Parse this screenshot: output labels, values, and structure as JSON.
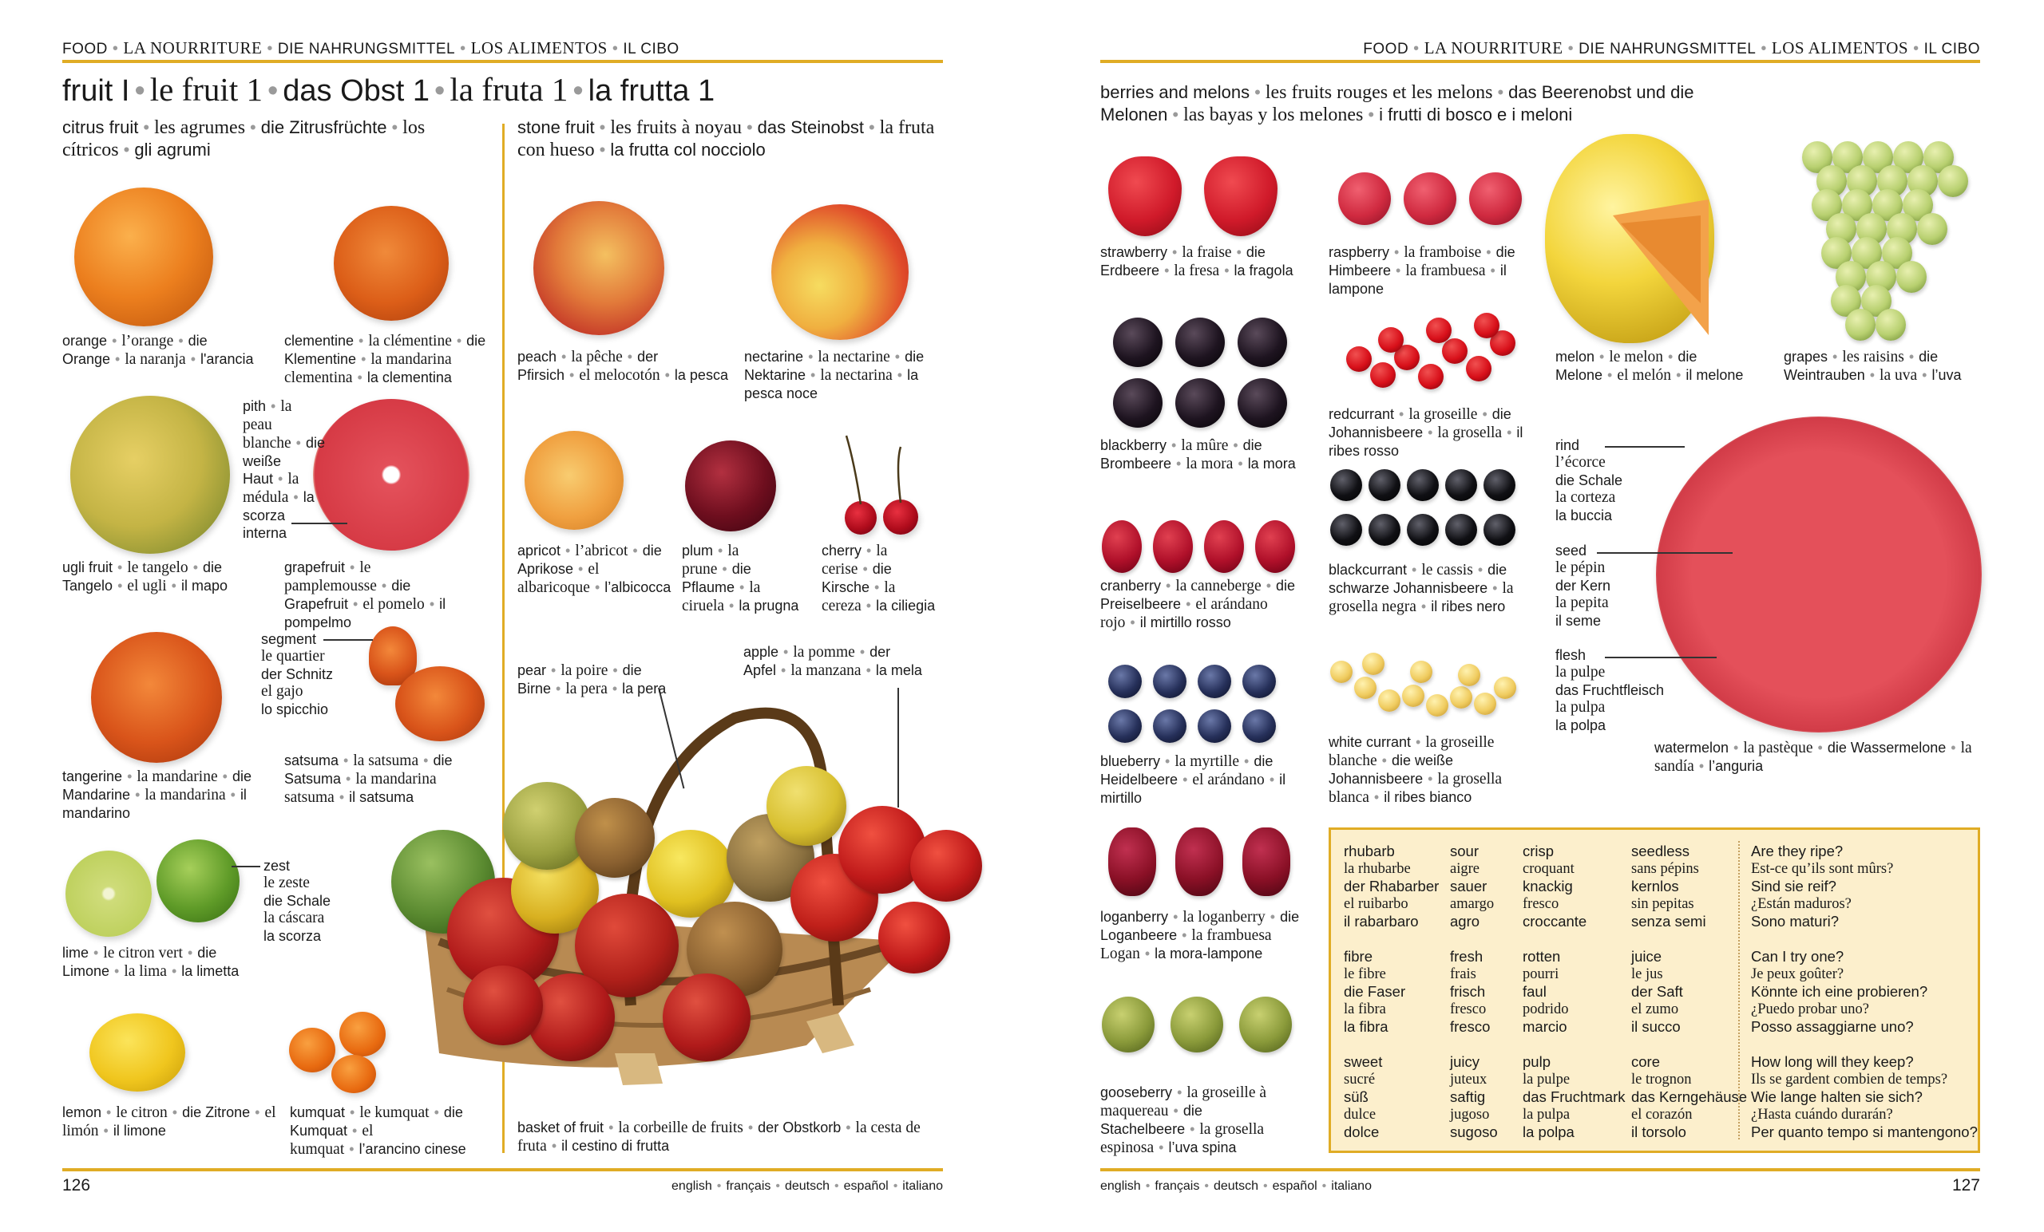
{
  "header": {
    "running_head": [
      "FOOD",
      "LA NOURRITURE",
      "DIE NAHRUNGSMITTEL",
      "LOS ALIMENTOS",
      "IL CIBO"
    ]
  },
  "title": [
    "fruit I",
    "le fruit 1",
    "das Obst 1",
    "la fruta 1",
    "la frutta 1"
  ],
  "left_page": {
    "citrus_heading": [
      "citrus fruit",
      "les agrumes",
      "die Zitrusfrüchte",
      "los cítricos",
      "gli agrumi"
    ],
    "stone_heading": [
      "stone fruit",
      "les fruits à noyau",
      "das Steinobst",
      "la fruta con hueso",
      "la frutta col nocciolo"
    ],
    "entries": {
      "orange": [
        "orange",
        "l’orange",
        "die Orange",
        "la naranja",
        "l'arancia"
      ],
      "clementine": [
        "clementine",
        "la clémentine",
        "die Klementine",
        "la mandarina clementina",
        "la clementina"
      ],
      "ugli": [
        "ugli fruit",
        "le tangelo",
        "die Tangelo",
        "el ugli",
        "il mapo"
      ],
      "pith": [
        "pith",
        "la peau blanche",
        "die weiße Haut",
        "la médula",
        "la scorza interna"
      ],
      "grapefruit": [
        "grapefruit",
        "le pamplemousse",
        "die Grapefruit",
        "el pomelo",
        "il pompelmo"
      ],
      "tangerine": [
        "tangerine",
        "la mandarine",
        "die Mandarine",
        "la mandarina",
        "il mandarino"
      ],
      "segment": [
        "segment",
        "le quartier",
        "der Schnitz",
        "el gajo",
        "lo spicchio"
      ],
      "satsuma": [
        "satsuma",
        "la satsuma",
        "die Satsuma",
        "la mandarina satsuma",
        "il satsuma"
      ],
      "zest": [
        "zest",
        "le zeste",
        "die Schale",
        "la cáscara",
        "la scorza"
      ],
      "lime": [
        "lime",
        "le citron vert",
        "die Limone",
        "la lima",
        "la limetta"
      ],
      "lemon": [
        "lemon",
        "le citron",
        "die Zitrone",
        "el limón",
        "il limone"
      ],
      "kumquat": [
        "kumquat",
        "le kumquat",
        "die Kumquat",
        "el kumquat",
        "l’arancino cinese"
      ],
      "peach": [
        "peach",
        "la pêche",
        "der Pfirsich",
        "el melocotón",
        "la pesca"
      ],
      "nectarine": [
        "nectarine",
        "la nectarine",
        "die Nektarine",
        "la nectarina",
        "la pesca noce"
      ],
      "apricot": [
        "apricot",
        "l’abricot",
        "die Aprikose",
        "el albaricoque",
        "l’albicocca"
      ],
      "plum": [
        "plum",
        "la prune",
        "die Pflaume",
        "la ciruela",
        "la prugna"
      ],
      "cherry": [
        "cherry",
        "la cerise",
        "die Kirsche",
        "la cereza",
        "la ciliegia"
      ],
      "pear": [
        "pear",
        "la poire",
        "die Birne",
        "la pera",
        "la pera"
      ],
      "apple": [
        "apple",
        "la pomme",
        "der Apfel",
        "la manzana",
        "la mela"
      ],
      "basket": [
        "basket of fruit",
        "la corbeille de fruits",
        "der Obstkorb",
        "la cesta de fruta",
        "il cestino di frutta"
      ]
    }
  },
  "right_page": {
    "heading": [
      "berries and melons",
      "les fruits rouges et les melons",
      "das Beerenobst und die Melonen",
      "las bayas y los melones",
      "i frutti di bosco e i meloni"
    ],
    "entries": {
      "strawberry": [
        "strawberry",
        "la fraise",
        "die Erdbeere",
        "la fresa",
        "la fragola"
      ],
      "raspberry": [
        "raspberry",
        "la framboise",
        "die Himbeere",
        "la frambuesa",
        "il lampone"
      ],
      "melon": [
        "melon",
        "le melon",
        "die Melone",
        "el melón",
        "il melone"
      ],
      "grapes": [
        "grapes",
        "les raisins",
        "die Weintrauben",
        "la uva",
        "l’uva"
      ],
      "blackberry": [
        "blackberry",
        "la mûre",
        "die Brombeere",
        "la mora",
        "la mora"
      ],
      "redcurrant": [
        "redcurrant",
        "la groseille",
        "die Johannisbeere",
        "la grosella",
        "il ribes rosso"
      ],
      "blackcurrant": [
        "blackcurrant",
        "le cassis",
        "die schwarze Johannisbeere",
        "la grosella negra",
        "il ribes nero"
      ],
      "rind": [
        "rind",
        "l’écorce",
        "die Schale",
        "la corteza",
        "la buccia"
      ],
      "seed": [
        "seed",
        "le pépin",
        "der Kern",
        "la pepita",
        "il seme"
      ],
      "flesh": [
        "flesh",
        "la pulpe",
        "das Fruchtfleisch",
        "la pulpa",
        "la polpa"
      ],
      "watermelon": [
        "watermelon",
        "la pastèque",
        "die Wassermelone",
        "la sandía",
        "l’anguria"
      ],
      "cranberry": [
        "cranberry",
        "la canneberge",
        "die Preiselbeere",
        "el arándano rojo",
        "il mirtillo rosso"
      ],
      "white_currant": [
        "white currant",
        "la groseille blanche",
        "die weiße Johannisbeere",
        "la grosella blanca",
        "il ribes bianco"
      ],
      "blueberry": [
        "blueberry",
        "la myrtille",
        "die Heidelbeere",
        "el arándano",
        "il mirtillo"
      ],
      "loganberry": [
        "loganberry",
        "la loganberry",
        "die Loganbeere",
        "la frambuesa Logan",
        "la mora-lampone"
      ],
      "gooseberry": [
        "gooseberry",
        "la groseille à maquereau",
        "die Stachelbeere",
        "la grosella espinosa",
        "l’uva spina"
      ]
    }
  },
  "phrase_table": {
    "word_columns": [
      [
        [
          "rhubarb",
          "la rhubarbe",
          "der Rhabarber",
          "el ruibarbo",
          "il rabarbaro"
        ],
        [
          "fibre",
          "le fibre",
          "die Faser",
          "la fibra",
          "la fibra"
        ],
        [
          "sweet",
          "sucré",
          "süß",
          "dulce",
          "dolce"
        ]
      ],
      [
        [
          "sour",
          "aigre",
          "sauer",
          "amargo",
          "agro"
        ],
        [
          "fresh",
          "frais",
          "frisch",
          "fresco",
          "fresco"
        ],
        [
          "juicy",
          "juteux",
          "saftig",
          "jugoso",
          "sugoso"
        ]
      ],
      [
        [
          "crisp",
          "croquant",
          "knackig",
          "fresco",
          "croccante"
        ],
        [
          "rotten",
          "pourri",
          "faul",
          "podrido",
          "marcio"
        ],
        [
          "pulp",
          "la pulpe",
          "das Fruchtmark",
          "la pulpa",
          "la polpa"
        ]
      ],
      [
        [
          "seedless",
          "sans pépins",
          "kernlos",
          "sin pepitas",
          "senza semi"
        ],
        [
          "juice",
          "le jus",
          "der Saft",
          "el zumo",
          "il succo"
        ],
        [
          "core",
          "le trognon",
          "das Kerngehäuse",
          "el corazón",
          "il torsolo"
        ]
      ]
    ],
    "phrases": [
      [
        "Are they ripe?",
        "Est-ce qu’ils sont mûrs?",
        "Sind sie reif?",
        "¿Están maduros?",
        "Sono maturi?"
      ],
      [
        "Can I try one?",
        "Je peux goûter?",
        "Könnte ich eine probieren?",
        "¿Puedo probar uno?",
        "Posso assaggiarne uno?"
      ],
      [
        "How long will they keep?",
        "Ils se gardent combien de temps?",
        "Wie lange halten sie sich?",
        "¿Hasta cuándo durarán?",
        "Per quanto tempo si mantengono?"
      ]
    ]
  },
  "footer": {
    "languages": [
      "english",
      "français",
      "deutsch",
      "español",
      "italiano"
    ],
    "left_page_number": "126",
    "right_page_number": "127"
  },
  "colors": {
    "accent_gold": "#e0ac25",
    "phrase_box_fill": "#fcefcc",
    "bullet_gray": "#9a9a9a"
  }
}
